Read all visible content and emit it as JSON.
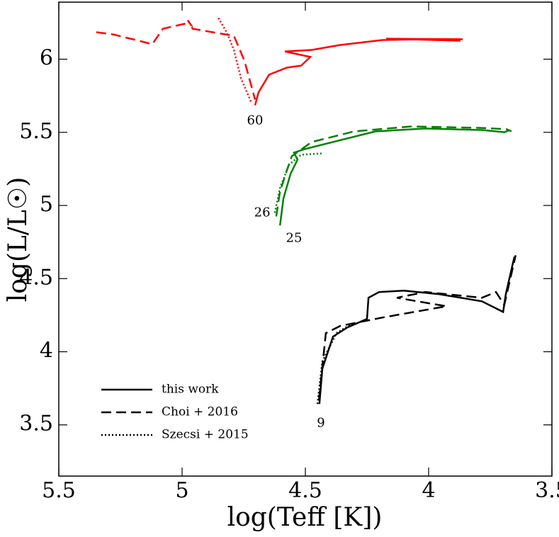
{
  "chart_data": {
    "type": "line",
    "xlabel": "log(Teff [K])",
    "ylabel": "log(L/L☉)",
    "xlim": [
      5.5,
      3.5
    ],
    "ylim": [
      3.15,
      6.39
    ],
    "xticks": [
      5.5,
      5.0,
      4.5,
      4.0,
      3.5
    ],
    "yticks": [
      3.5,
      4.0,
      4.5,
      5.0,
      5.5,
      6.0
    ],
    "legend_position": "lower left",
    "legend": [
      {
        "label": "this work",
        "style": "solid"
      },
      {
        "label": "Choi + 2016",
        "style": "dashed"
      },
      {
        "label": "Szecsi + 2015",
        "style": "dotted"
      }
    ],
    "series": [
      {
        "color": "#ff0000",
        "style": "solid",
        "x": [
          4.704,
          4.69,
          4.647,
          4.575,
          4.517,
          4.48,
          4.583,
          4.474,
          4.359,
          4.187,
          4.014,
          3.862,
          4.172,
          3.871
        ],
        "values": [
          5.685,
          5.773,
          5.894,
          5.942,
          5.956,
          6.015,
          6.053,
          6.063,
          6.097,
          6.131,
          6.136,
          6.136,
          6.14,
          6.126
        ]
      },
      {
        "color": "#ff0000",
        "style": "dashed",
        "x": [
          5.348,
          5.279,
          5.164,
          5.121,
          5.078,
          4.991,
          4.963,
          4.977,
          4.957,
          4.876,
          4.79,
          4.747,
          4.704
        ],
        "values": [
          6.184,
          6.169,
          6.121,
          6.102,
          6.208,
          6.242,
          6.232,
          6.266,
          6.208,
          6.184,
          6.16,
          5.99,
          5.724
        ]
      },
      {
        "color": "#ff0000",
        "style": "dotted",
        "x": [
          4.853,
          4.819,
          4.79,
          4.761,
          4.718
        ],
        "values": [
          6.281,
          6.184,
          6.063,
          5.869,
          5.7
        ]
      },
      {
        "color": "#008000",
        "style": "solid",
        "x": [
          4.603,
          4.589,
          4.56,
          4.532,
          4.546,
          4.503,
          4.388,
          4.216,
          4.014,
          3.784,
          3.693,
          3.67
        ],
        "values": [
          4.863,
          5.046,
          5.216,
          5.313,
          5.361,
          5.385,
          5.434,
          5.506,
          5.526,
          5.516,
          5.501,
          5.516
        ]
      },
      {
        "color": "#008000",
        "style": "dashed",
        "x": [
          4.618,
          4.603,
          4.575,
          4.555,
          4.474,
          4.302,
          4.072,
          3.784,
          3.684,
          3.664
        ],
        "values": [
          4.925,
          5.095,
          5.24,
          5.337,
          5.434,
          5.506,
          5.54,
          5.53,
          5.521,
          5.506
        ]
      },
      {
        "color": "#008000",
        "style": "dotted",
        "x": [
          4.624,
          4.603,
          4.566,
          4.517,
          4.431
        ],
        "values": [
          4.95,
          5.119,
          5.279,
          5.347,
          5.356
        ]
      },
      {
        "color": "#000000",
        "style": "solid",
        "x": [
          4.443,
          4.431,
          4.388,
          4.33,
          4.25,
          4.244,
          4.201,
          4.101,
          3.957,
          3.784,
          3.698,
          3.687,
          3.664,
          3.652
        ],
        "values": [
          3.643,
          3.885,
          4.103,
          4.166,
          4.224,
          4.369,
          4.408,
          4.418,
          4.393,
          4.345,
          4.272,
          4.393,
          4.562,
          4.65
        ]
      },
      {
        "color": "#000000",
        "style": "dashed",
        "x": [
          4.445,
          4.417,
          4.359,
          4.187,
          3.928,
          4.129,
          4.014,
          3.784,
          3.727,
          3.693,
          3.647
        ],
        "values": [
          3.667,
          4.127,
          4.176,
          4.234,
          4.311,
          4.369,
          4.408,
          4.369,
          4.408,
          4.32,
          4.659
        ]
      },
      {
        "color": "#000000",
        "style": "dotted",
        "x": [
          4.451,
          4.431,
          4.374,
          4.302
        ],
        "values": [
          3.643,
          3.933,
          4.127,
          4.2
        ]
      }
    ],
    "annotations": [
      {
        "text": "60",
        "x": 4.704,
        "y": 5.579
      },
      {
        "text": "26",
        "x": 4.675,
        "y": 4.95
      },
      {
        "text": "25",
        "x": 4.546,
        "y": 4.775
      },
      {
        "text": "9",
        "x": 4.437,
        "y": 3.512
      }
    ]
  }
}
